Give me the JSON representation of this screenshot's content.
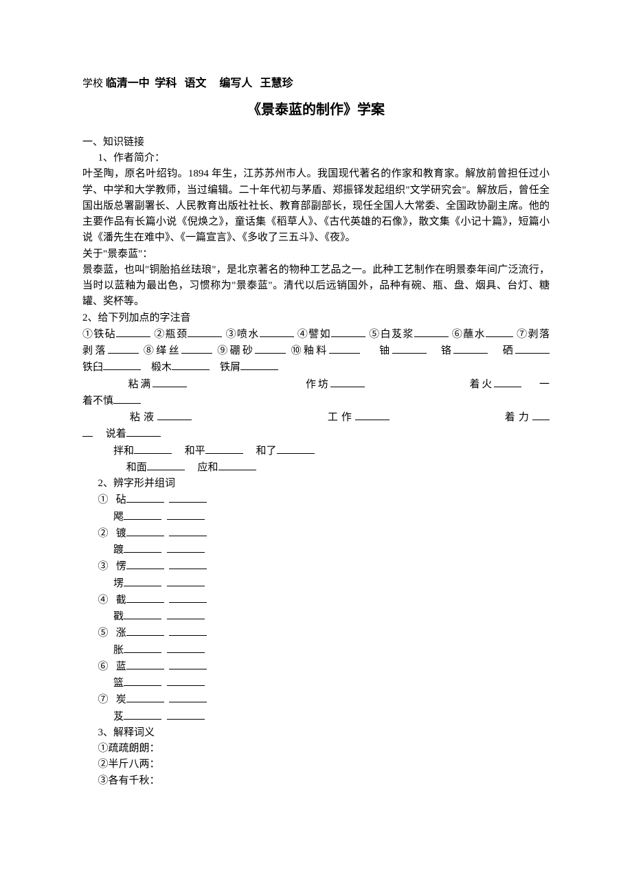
{
  "header": {
    "label_school": "学校",
    "school": "临清一中",
    "label_subject": "学科",
    "subject": "语文",
    "label_author": "编写人",
    "author": "王慧珍"
  },
  "title": "《景泰蓝的制作》学案",
  "section1": {
    "heading": "一、知识链接",
    "sub1_label": "1、作者简介：",
    "author_intro": "叶圣陶，原名叶绍钧。1894 年生，江苏苏州市人。我国现代著名的作家和教育家。解放前曾担任过小学、中学和大学教师，当过编辑。二十年代初与茅盾、郑振铎发起组织\"文学研究会\"。解放后，曾任全国出版总署副署长、人民教育出版社社长、教育部副部长，现任全国人大常委、全国政协副主席。他的主要作品有长篇小说《倪焕之》，童话集《稻草人》、《古代英雄的石像》，散文集《小记十篇》，短篇小说《潘先生在难中》、《一篇宣言》、《多收了三五斗》、《夜》。",
    "about_jtl_label": "关于\"景泰蓝\"：",
    "about_jtl_text": "景泰蓝，也叫\"铜胎掐丝珐琅\"，是北京著名的物种工艺品之一。此种工艺制作在明景泰年间广泛流行，当时以蓝釉为最出色，习惯称为\"景泰蓝\"。清代以后远销国外，品种有碗、瓶、盘、烟具、台灯、糖罐、奖杯等。"
  },
  "section2": {
    "heading": "2、给下列加点的字注音",
    "items_circled": {
      "i1": "①铁砧",
      "i2": "②瓶颈",
      "i3": "③喷水",
      "i4": "④譬如",
      "i5": "⑤白芨浆",
      "i6": "⑥蘸水",
      "i7": "⑦剥落",
      "i8": "⑧缂丝",
      "i9": "⑨硼砂",
      "i10": "⑩釉料"
    },
    "plain_items": {
      "a": "铀",
      "b": "铬",
      "c": "硒",
      "d": "铁臼",
      "e": "椴木",
      "f": "铁屑"
    },
    "group_zhan": {
      "a": "粘满",
      "b": "作坊",
      "c": "着火",
      "d": "一着不慎"
    },
    "group_nian": {
      "a": "粘液",
      "b": "工作",
      "c": "着力",
      "d": "说着"
    },
    "group_he": {
      "a": "拌和",
      "b": "和平",
      "c": "和了",
      "d": "和面",
      "e": "应和"
    }
  },
  "section3": {
    "heading": "2、辨字形并组词",
    "pairs": [
      {
        "num": "①",
        "a": "砧",
        "b": "飔"
      },
      {
        "num": "②",
        "a": "镀",
        "b": "踱"
      },
      {
        "num": "③",
        "a": "愣",
        "b": "塄"
      },
      {
        "num": "④",
        "a": "截",
        "b": "戳"
      },
      {
        "num": "⑤",
        "a": "涨",
        "b": "胀"
      },
      {
        "num": "⑥",
        "a": "蓝",
        "b": "篮"
      },
      {
        "num": "⑦",
        "a": "炭",
        "b": "芨"
      }
    ]
  },
  "section4": {
    "heading": "3、解释词义",
    "items": [
      "①疏疏朗朗：",
      "②半斤八两：",
      "③各有千秋："
    ]
  },
  "style": {
    "background_color": "#ffffff",
    "text_color": "#000000",
    "body_fontsize": 15,
    "title_fontsize": 20,
    "blank_widths": {
      "short": 50,
      "mid": 60,
      "long": 70
    }
  }
}
